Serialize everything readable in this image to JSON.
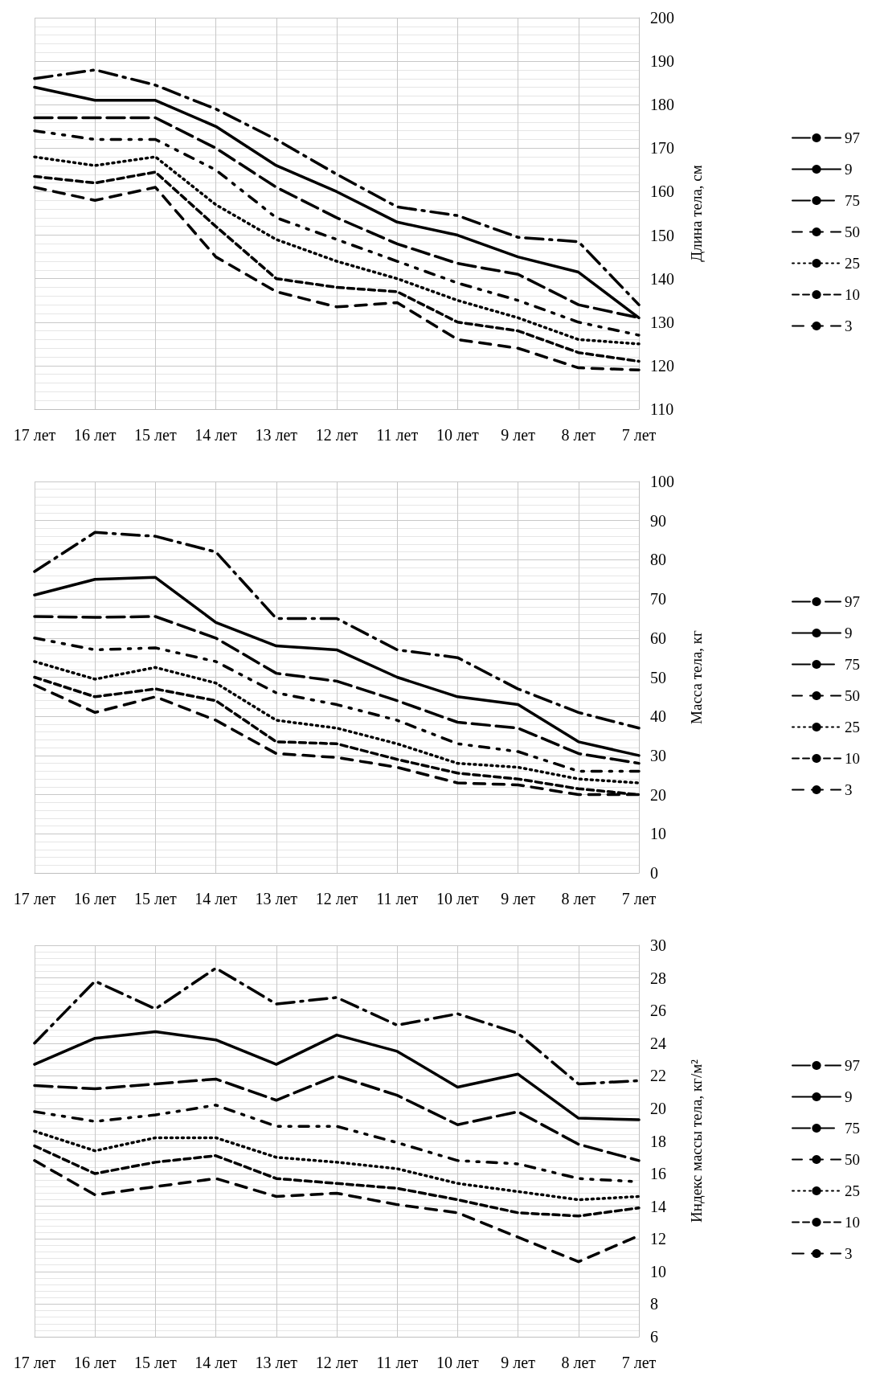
{
  "chart_data": [
    {
      "type": "line",
      "ylabel": "Длина тела, см",
      "categories": [
        "17 лет",
        "16 лет",
        "15 лет",
        "14 лет",
        "13 лет",
        "12 лет",
        "11 лет",
        "10 лет",
        "9 лет",
        "8 лет",
        "7 лет"
      ],
      "ylim": [
        110,
        200
      ],
      "yticks": [
        110,
        120,
        130,
        140,
        150,
        160,
        170,
        180,
        190,
        200
      ],
      "grid": true,
      "legend": "right",
      "marker": "none",
      "series": [
        {
          "name": "97",
          "color": "#000000",
          "line_style": "dashed",
          "values": [
            186,
            188,
            184.5,
            179,
            172,
            164,
            156.5,
            154.5,
            149.5,
            148.5,
            134
          ]
        },
        {
          "name": "9",
          "color": "#000000",
          "line_style": "solid",
          "values": [
            184,
            181,
            181,
            175,
            166,
            160,
            153,
            150,
            145,
            141.5,
            131
          ]
        },
        {
          "name": "75",
          "color": "#000000",
          "line_style": "dashed",
          "values": [
            177,
            177,
            177,
            170,
            161,
            154,
            148,
            143.5,
            141,
            134,
            131
          ]
        },
        {
          "name": "50",
          "color": "#000000",
          "line_style": "dashed",
          "values": [
            174,
            172,
            172,
            165,
            154,
            149,
            144,
            139,
            135,
            130,
            127
          ]
        },
        {
          "name": "25",
          "color": "#000000",
          "line_style": "dotted",
          "values": [
            168,
            166,
            168,
            157,
            149,
            144,
            140,
            135,
            131,
            126,
            125
          ]
        },
        {
          "name": "10",
          "color": "#000000",
          "line_style": "dashed",
          "values": [
            163.5,
            162,
            164.5,
            152,
            140,
            138,
            137,
            130,
            128,
            123,
            121
          ]
        },
        {
          "name": "3",
          "color": "#000000",
          "line_style": "dashed",
          "values": [
            161,
            158,
            161,
            145,
            137,
            133.5,
            134.5,
            126,
            124,
            119.5,
            119
          ]
        }
      ]
    },
    {
      "type": "line",
      "ylabel": "Масса тела, кг",
      "categories": [
        "17 лет",
        "16 лет",
        "15 лет",
        "14 лет",
        "13 лет",
        "12 лет",
        "11 лет",
        "10 лет",
        "9 лет",
        "8 лет",
        "7 лет"
      ],
      "ylim": [
        0,
        100
      ],
      "yticks": [
        0,
        10,
        20,
        30,
        40,
        50,
        60,
        70,
        80,
        90,
        100
      ],
      "grid": true,
      "legend": "right",
      "marker": "none",
      "series": [
        {
          "name": "97",
          "color": "#000000",
          "line_style": "dashed",
          "values": [
            77,
            87,
            86,
            82,
            65,
            65,
            57,
            55,
            47,
            41,
            37
          ]
        },
        {
          "name": "9",
          "color": "#000000",
          "line_style": "solid",
          "values": [
            71,
            75,
            75.5,
            64,
            58,
            57,
            50,
            45,
            43,
            33.5,
            30
          ]
        },
        {
          "name": "75",
          "color": "#000000",
          "line_style": "dashed",
          "values": [
            65.5,
            65.3,
            65.5,
            60,
            51,
            49,
            44,
            38.5,
            37,
            30.5,
            28
          ]
        },
        {
          "name": "50",
          "color": "#000000",
          "line_style": "dashed",
          "values": [
            60,
            57,
            57.5,
            54,
            46,
            43,
            39,
            33,
            31,
            26,
            26
          ]
        },
        {
          "name": "25",
          "color": "#000000",
          "line_style": "dotted",
          "values": [
            54,
            49.5,
            52.5,
            48.5,
            39,
            37,
            33,
            28,
            27,
            24,
            23
          ]
        },
        {
          "name": "10",
          "color": "#000000",
          "line_style": "dashed",
          "values": [
            50,
            45,
            47,
            44,
            33.5,
            33,
            29,
            25.5,
            24,
            21.5,
            20
          ]
        },
        {
          "name": "3",
          "color": "#000000",
          "line_style": "dashed",
          "values": [
            48,
            41,
            45,
            39,
            30.5,
            29.5,
            27,
            23,
            22.5,
            20,
            20
          ]
        }
      ]
    },
    {
      "type": "line",
      "ylabel": "Индекс массы тела, кг/м²",
      "categories": [
        "17 лет",
        "16 лет",
        "15 лет",
        "14 лет",
        "13 лет",
        "12 лет",
        "11 лет",
        "10 лет",
        "9 лет",
        "8 лет",
        "7 лет"
      ],
      "ylim": [
        6,
        30
      ],
      "yticks": [
        6,
        8,
        10,
        12,
        14,
        16,
        18,
        20,
        22,
        24,
        26,
        28,
        30
      ],
      "grid": true,
      "legend": "right",
      "marker": "none",
      "series": [
        {
          "name": "97",
          "color": "#000000",
          "line_style": "dashed",
          "values": [
            24,
            27.8,
            26.1,
            28.6,
            26.4,
            26.8,
            25.1,
            25.8,
            24.6,
            21.5,
            21.7
          ]
        },
        {
          "name": "9",
          "color": "#000000",
          "line_style": "solid",
          "values": [
            22.7,
            24.3,
            24.7,
            24.2,
            22.7,
            24.5,
            23.5,
            21.3,
            22.1,
            19.4,
            19.3
          ]
        },
        {
          "name": "75",
          "color": "#000000",
          "line_style": "dashed",
          "values": [
            21.4,
            21.2,
            21.5,
            21.8,
            20.5,
            22,
            20.8,
            19,
            19.8,
            17.8,
            16.8
          ]
        },
        {
          "name": "50",
          "color": "#000000",
          "line_style": "dashed",
          "values": [
            19.8,
            19.2,
            19.6,
            20.2,
            18.9,
            18.9,
            17.9,
            16.8,
            16.6,
            15.7,
            15.5
          ]
        },
        {
          "name": "25",
          "color": "#000000",
          "line_style": "dotted",
          "values": [
            18.6,
            17.4,
            18.2,
            18.2,
            17,
            16.7,
            16.3,
            15.4,
            14.9,
            14.4,
            14.6
          ]
        },
        {
          "name": "10",
          "color": "#000000",
          "line_style": "dashed",
          "values": [
            17.7,
            16,
            16.7,
            17.1,
            15.7,
            15.4,
            15.1,
            14.4,
            13.6,
            13.4,
            13.9
          ]
        },
        {
          "name": "3",
          "color": "#000000",
          "line_style": "dashed",
          "values": [
            16.8,
            14.7,
            15.2,
            15.7,
            14.6,
            14.8,
            14.1,
            13.6,
            12.1,
            10.6,
            12.2
          ]
        }
      ]
    }
  ]
}
